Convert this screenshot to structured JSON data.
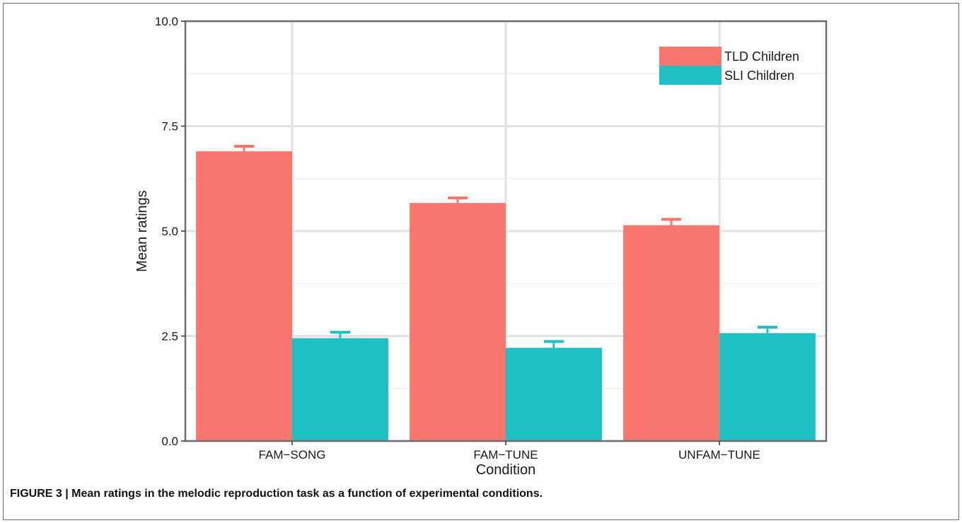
{
  "chart_data": {
    "type": "bar",
    "categories": [
      "FAM−SONG",
      "FAM−TUNE",
      "UNFAM−TUNE"
    ],
    "series": [
      {
        "name": "TLD Children",
        "color": "#F8766D",
        "values": [
          6.9,
          5.67,
          5.14
        ],
        "errors": [
          0.12,
          0.12,
          0.14
        ]
      },
      {
        "name": "SLI Children",
        "color": "#1FBFC3",
        "values": [
          2.45,
          2.22,
          2.57
        ],
        "errors": [
          0.14,
          0.15,
          0.14
        ]
      }
    ],
    "xlabel": "Condition",
    "ylabel": "Mean ratings",
    "ylim": [
      0,
      10
    ],
    "yticks": [
      "0.0",
      "2.5",
      "5.0",
      "7.5",
      "10.0"
    ],
    "grid": true,
    "legend_position": "top-right"
  },
  "caption": "FIGURE 3 | Mean ratings in the melodic reproduction task as a function of experimental conditions."
}
